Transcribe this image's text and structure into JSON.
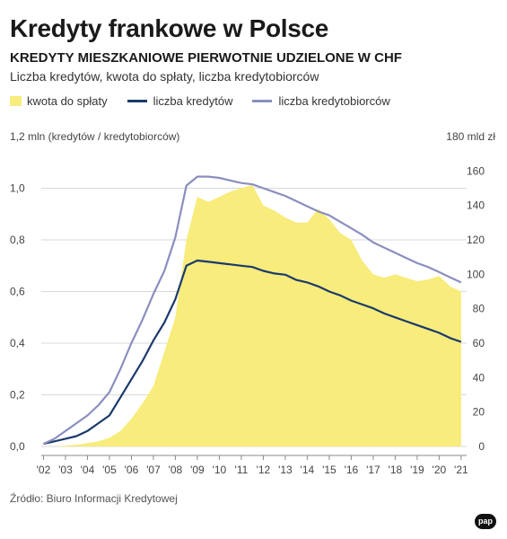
{
  "header": {
    "title": "Kredyty frankowe w Polsce",
    "subtitle": "KREDYTY MIESZKANIOWE PIERWOTNIE UDZIELONE W CHF",
    "description": "Liczba kredytów, kwota do spłaty, liczba kredytobiorców"
  },
  "legend": {
    "area_label": "kwota do spłaty",
    "line1_label": "liczba kredytów",
    "line2_label": "liczba kredytobiorców"
  },
  "axes": {
    "left_caption": "1,2 mln (kredytów / kredytobiorców)",
    "right_caption": "180 mld zł"
  },
  "source": "Źródło: Biuro Informacji Kredytowej",
  "logo_text": "pap",
  "colors": {
    "area": "#f7ec7c",
    "line1": "#1b3a6b",
    "line2": "#8a8fbf",
    "grid": "#d9d9d9"
  },
  "chart_data": {
    "type": "line",
    "title": "Kredyty frankowe w Polsce",
    "subtitle": "KREDYTY MIESZKANIOWE PIERWOTNIE UDZIELONE W CHF",
    "x": [
      2002.0,
      2002.5,
      2003.0,
      2003.5,
      2004.0,
      2004.5,
      2005.0,
      2005.5,
      2006.0,
      2006.5,
      2007.0,
      2007.5,
      2008.0,
      2008.5,
      2009.0,
      2009.5,
      2010.0,
      2010.5,
      2011.0,
      2011.5,
      2012.0,
      2012.5,
      2013.0,
      2013.5,
      2014.0,
      2014.5,
      2015.0,
      2015.5,
      2016.0,
      2016.5,
      2017.0,
      2017.5,
      2018.0,
      2018.5,
      2019.0,
      2019.5,
      2020.0,
      2020.5,
      2021.0
    ],
    "x_tick_labels": [
      "'02",
      "'03",
      "'04",
      "'05",
      "'06",
      "'07",
      "'08",
      "'09",
      "'10",
      "'11",
      "'12",
      "'13",
      "'14",
      "'15",
      "'16",
      "'17",
      "'18",
      "'19",
      "'20",
      "'21"
    ],
    "x_ticks": [
      2002,
      2003,
      2004,
      2005,
      2006,
      2007,
      2008,
      2009,
      2010,
      2011,
      2012,
      2013,
      2014,
      2015,
      2016,
      2017,
      2018,
      2019,
      2020,
      2021
    ],
    "y_left": {
      "range": [
        0,
        1.2
      ],
      "ticks": [
        0.0,
        0.2,
        0.4,
        0.6,
        0.8,
        1.0
      ],
      "tick_labels": [
        "0,0",
        "0,2",
        "0,4",
        "0,6",
        "0,8",
        "1,0"
      ]
    },
    "y_right": {
      "range": [
        0,
        180
      ],
      "ticks": [
        0,
        20,
        40,
        60,
        80,
        100,
        120,
        140,
        160
      ],
      "tick_labels": [
        "0",
        "20",
        "40",
        "60",
        "80",
        "100",
        "120",
        "140",
        "160"
      ]
    },
    "series": [
      {
        "name": "kwota do spłaty",
        "kind": "area",
        "axis": "right",
        "values": [
          0,
          0,
          0.5,
          1,
          2,
          3,
          5,
          9,
          16,
          25,
          35,
          55,
          75,
          120,
          145,
          142,
          145,
          148,
          150,
          152,
          140,
          137,
          133,
          130,
          130,
          138,
          132,
          124,
          120,
          108,
          100,
          98,
          100,
          98,
          96,
          97,
          99,
          93,
          90
        ]
      },
      {
        "name": "liczba kredytów",
        "kind": "line",
        "axis": "left",
        "values": [
          0.01,
          0.02,
          0.03,
          0.04,
          0.06,
          0.09,
          0.12,
          0.19,
          0.26,
          0.33,
          0.41,
          0.48,
          0.57,
          0.7,
          0.72,
          0.715,
          0.71,
          0.705,
          0.7,
          0.695,
          0.68,
          0.67,
          0.665,
          0.645,
          0.635,
          0.62,
          0.6,
          0.585,
          0.565,
          0.55,
          0.535,
          0.515,
          0.5,
          0.485,
          0.47,
          0.455,
          0.44,
          0.42,
          0.405
        ]
      },
      {
        "name": "liczba kredytobiorców",
        "kind": "line",
        "axis": "left",
        "values": [
          0.01,
          0.03,
          0.06,
          0.09,
          0.12,
          0.16,
          0.21,
          0.3,
          0.4,
          0.49,
          0.59,
          0.68,
          0.81,
          1.01,
          1.045,
          1.045,
          1.04,
          1.03,
          1.02,
          1.015,
          1.0,
          0.985,
          0.97,
          0.95,
          0.93,
          0.91,
          0.895,
          0.87,
          0.845,
          0.82,
          0.79,
          0.77,
          0.75,
          0.73,
          0.71,
          0.695,
          0.675,
          0.655,
          0.635
        ]
      }
    ]
  }
}
